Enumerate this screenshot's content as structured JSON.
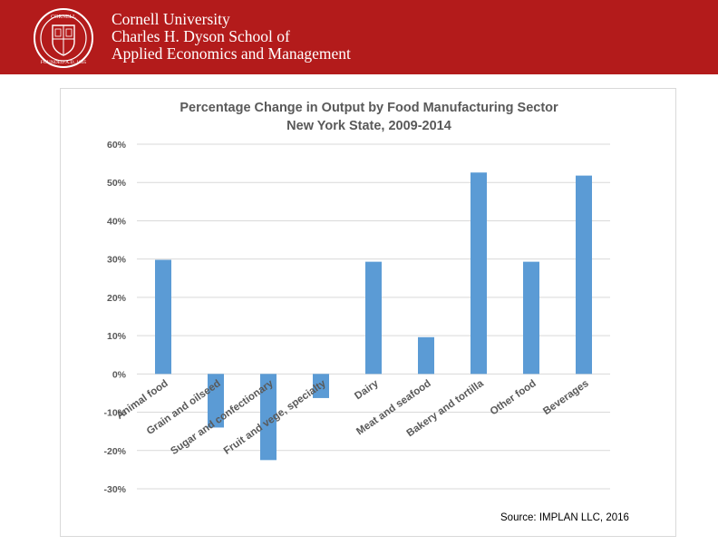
{
  "header": {
    "line1": "Cornell University",
    "line2": "Charles H. Dyson School of",
    "line3": "Applied Economics and Management"
  },
  "source_note": "Source: IMPLAN LLC, 2016",
  "colors": {
    "banner": "#b31b1b",
    "bar": "#5b9bd5",
    "grid": "#d9d9d9",
    "text": "#595959"
  },
  "chart_data": {
    "type": "bar",
    "title_lines": [
      "Percentage Change in Output by Food Manufacturing Sector",
      "New York State, 2009-2014"
    ],
    "categories": [
      "Animal food",
      "Grain and oilseed",
      "Sugar and confectionary",
      "Fruit and vege, specialty",
      "Dairy",
      "Meat and seafood",
      "Bakery and tortilla",
      "Other food",
      "Beverages"
    ],
    "values": [
      29.8,
      -14.0,
      -22.5,
      -6.3,
      29.3,
      9.6,
      52.6,
      29.3,
      51.8
    ],
    "ylim": [
      -30,
      60
    ],
    "yticks": [
      60,
      50,
      40,
      30,
      20,
      10,
      0,
      -10,
      -20,
      -30
    ],
    "ytick_labels": [
      "60%",
      "50%",
      "40%",
      "30%",
      "20%",
      "10%",
      "0%",
      "-10%",
      "-20%",
      "-30%"
    ],
    "xlabel": "",
    "ylabel": "",
    "grid": true,
    "legend": "none"
  }
}
